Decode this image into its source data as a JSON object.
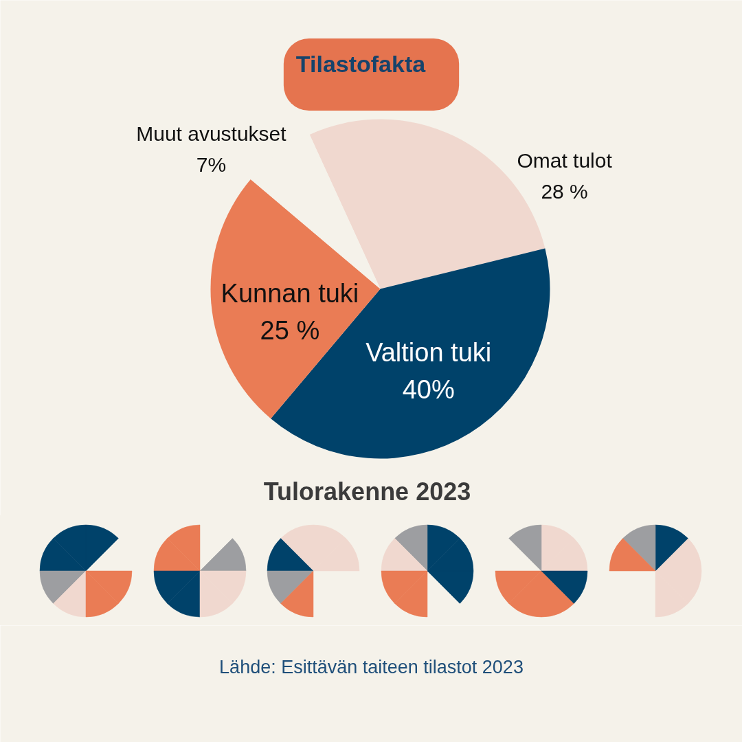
{
  "chart_data": {
    "type": "pie",
    "title": "Tilastofakta",
    "subtitle": "Tulorakenne 2023",
    "categories": [
      "Omat tulot",
      "Valtion tuki",
      "Kunnan tuki",
      "Muut avustukset"
    ],
    "values": [
      28,
      40,
      25,
      7
    ],
    "colors": [
      "#f0d8cf",
      "#00426a",
      "#ea7c55",
      "#f5f2ea"
    ],
    "value_labels": [
      "28 %",
      "40%",
      "25 %",
      "7%"
    ],
    "annotations": [
      "Lähde: Esittävän taiteen tilastot 2023"
    ]
  }
}
